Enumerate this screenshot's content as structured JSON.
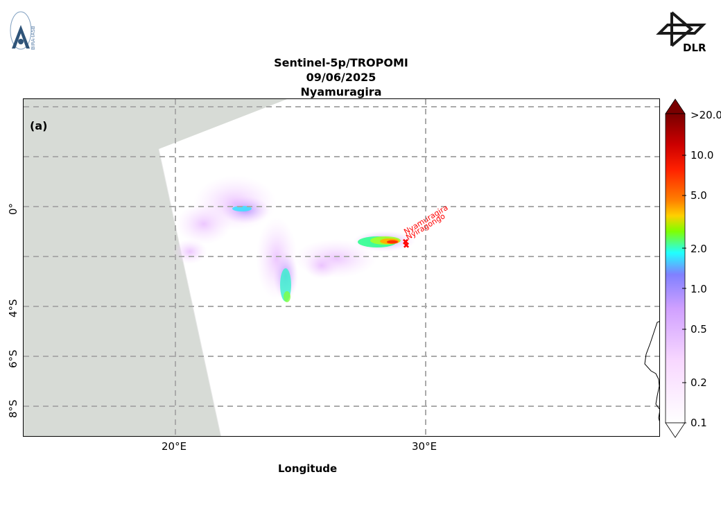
{
  "header": {
    "title_line1": "Sentinel-5p/TROPOMI",
    "title_line2": "09/06/2025",
    "title_line3": "Nyamuragira"
  },
  "logos": {
    "left": {
      "name": "bira-iasb-logo",
      "text": "BIRA-IASB"
    },
    "right": {
      "name": "dlr-logo",
      "text": "DLR"
    }
  },
  "map": {
    "panel_label": "(a)",
    "x_axis_title": "Longitude",
    "x_ticks": [
      "20°E",
      "30°E"
    ],
    "y_ticks": [
      "0°",
      "4°S",
      "6°S",
      "8°S"
    ],
    "volcano_labels": [
      "Nyamuragira",
      "Nyiragongo"
    ],
    "no_data_color": "#d7dbd6",
    "gridlines": "dashed grey",
    "label_color": "#ff0000"
  },
  "colorbar": {
    "labels": [
      ">20.0",
      "10.0",
      "5.0",
      "2.0",
      "1.0",
      "0.5",
      "0.2",
      "0.1"
    ],
    "colors": [
      "#7a0000",
      "#cc0000",
      "#ff2000",
      "#ff8000",
      "#ffd000",
      "#80ff00",
      "#20ffff",
      "#8080ff",
      "#d0a0ff",
      "#f8d8ff",
      "#ffffff"
    ]
  }
}
